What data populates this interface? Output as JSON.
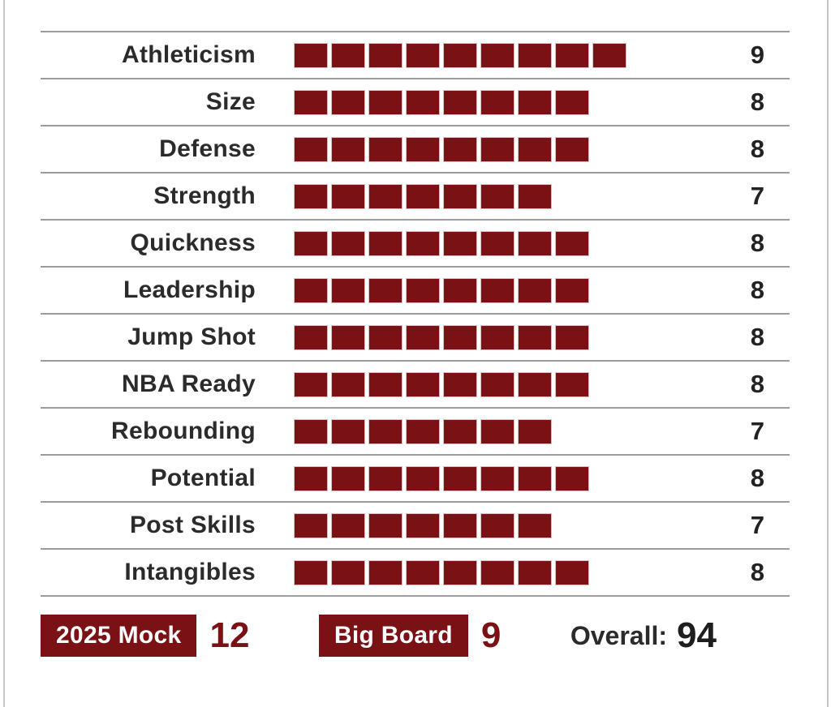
{
  "ratings": {
    "scale_max": 10,
    "rows": [
      {
        "label": "Athleticism",
        "score": 9
      },
      {
        "label": "Size",
        "score": 8
      },
      {
        "label": "Defense",
        "score": 8
      },
      {
        "label": "Strength",
        "score": 7
      },
      {
        "label": "Quickness",
        "score": 8
      },
      {
        "label": "Leadership",
        "score": 8
      },
      {
        "label": "Jump Shot",
        "score": 8
      },
      {
        "label": "NBA Ready",
        "score": 8
      },
      {
        "label": "Rebounding",
        "score": 7
      },
      {
        "label": "Potential",
        "score": 8
      },
      {
        "label": "Post Skills",
        "score": 7
      },
      {
        "label": "Intangibles",
        "score": 8
      }
    ]
  },
  "footer": {
    "mock_label": "2025 Mock",
    "mock_value": "12",
    "big_board_label": "Big Board",
    "big_board_value": "9",
    "overall_label": "Overall:",
    "overall_value": "94"
  },
  "colors": {
    "accent_red": "#7a1115",
    "separator": "#9c9c9c",
    "card_edge": "#c6c6c6",
    "text_dark": "#2b2b2b",
    "number_dark": "#222222",
    "background": "#ffffff"
  },
  "chart_data": {
    "type": "bar",
    "orientation": "horizontal",
    "bar_style": "segmented-blocks",
    "categories": [
      "Athleticism",
      "Size",
      "Defense",
      "Strength",
      "Quickness",
      "Leadership",
      "Jump Shot",
      "NBA Ready",
      "Rebounding",
      "Potential",
      "Post Skills",
      "Intangibles"
    ],
    "values": [
      9,
      8,
      8,
      7,
      8,
      8,
      8,
      8,
      7,
      8,
      7,
      8
    ],
    "title": "",
    "xlabel": "",
    "ylabel": "",
    "xlim": [
      0,
      10
    ],
    "value_labels_shown": true,
    "legend": "none",
    "summary": {
      "2025 Mock": 12,
      "Big Board": 9,
      "Overall": 94
    }
  }
}
